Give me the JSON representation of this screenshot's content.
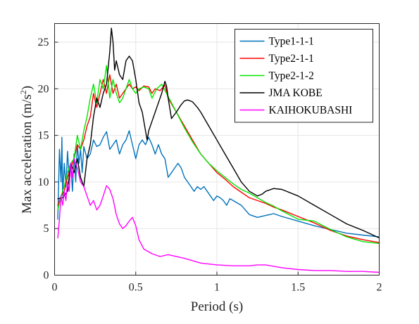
{
  "chart_data": {
    "type": "line",
    "xlabel": "Period (s)",
    "ylabel_text": "Max acceleration (m/s",
    "ylabel_sup": "2",
    "ylabel_close": ")",
    "xlim": [
      0,
      2
    ],
    "ylim": [
      0,
      27
    ],
    "xticks": [
      0,
      0.5,
      1,
      1.5,
      2
    ],
    "xtick_labels": [
      "0",
      "0.5",
      "1",
      "1.5",
      "2"
    ],
    "yticks": [
      0,
      5,
      10,
      15,
      20,
      25
    ],
    "ytick_labels": [
      "0",
      "5",
      "10",
      "15",
      "20",
      "25"
    ],
    "grid": true,
    "legend_position": "top-right",
    "series": [
      {
        "name": "Type1-1-1",
        "color": "#0072BD",
        "x": [
          0.02,
          0.03,
          0.04,
          0.045,
          0.05,
          0.06,
          0.07,
          0.08,
          0.09,
          0.1,
          0.11,
          0.12,
          0.13,
          0.14,
          0.15,
          0.16,
          0.17,
          0.18,
          0.2,
          0.22,
          0.24,
          0.26,
          0.28,
          0.3,
          0.32,
          0.34,
          0.36,
          0.38,
          0.4,
          0.42,
          0.44,
          0.46,
          0.48,
          0.5,
          0.52,
          0.54,
          0.56,
          0.58,
          0.6,
          0.62,
          0.64,
          0.66,
          0.68,
          0.7,
          0.72,
          0.74,
          0.76,
          0.78,
          0.8,
          0.82,
          0.84,
          0.86,
          0.88,
          0.9,
          0.92,
          0.94,
          0.96,
          0.98,
          1.0,
          1.02,
          1.04,
          1.06,
          1.08,
          1.1,
          1.15,
          1.2,
          1.25,
          1.3,
          1.35,
          1.4,
          1.5,
          1.6,
          1.7,
          1.8,
          1.9,
          2.0
        ],
        "y": [
          6.0,
          13.5,
          10.0,
          14.8,
          8.5,
          12.0,
          9.5,
          13.3,
          10.5,
          12.0,
          9.0,
          13.0,
          10.0,
          14.0,
          12.0,
          13.5,
          11.0,
          13.8,
          12.5,
          13.0,
          14.5,
          13.8,
          14.0,
          14.8,
          15.4,
          13.5,
          14.0,
          14.5,
          13.0,
          14.0,
          14.5,
          15.5,
          14.0,
          12.5,
          14.0,
          14.5,
          14.0,
          14.8,
          14.0,
          13.0,
          14.0,
          13.0,
          12.5,
          10.5,
          11.0,
          11.5,
          12.0,
          11.5,
          10.5,
          10.0,
          9.5,
          9.0,
          9.5,
          9.2,
          9.5,
          9.0,
          8.5,
          8.0,
          8.5,
          8.3,
          8.0,
          7.5,
          8.2,
          8.0,
          7.5,
          6.5,
          6.2,
          6.4,
          6.6,
          6.3,
          5.8,
          5.3,
          4.9,
          4.5,
          4.3,
          4.1
        ]
      },
      {
        "name": "Type2-1-1",
        "color": "#FF0000",
        "x": [
          0.02,
          0.04,
          0.06,
          0.08,
          0.1,
          0.12,
          0.14,
          0.16,
          0.18,
          0.2,
          0.22,
          0.24,
          0.26,
          0.28,
          0.3,
          0.32,
          0.34,
          0.36,
          0.38,
          0.4,
          0.42,
          0.44,
          0.46,
          0.48,
          0.5,
          0.52,
          0.55,
          0.58,
          0.6,
          0.62,
          0.65,
          0.68,
          0.7,
          0.75,
          0.8,
          0.85,
          0.9,
          0.95,
          1.0,
          1.05,
          1.1,
          1.15,
          1.2,
          1.25,
          1.3,
          1.35,
          1.4,
          1.5,
          1.6,
          1.7,
          1.8,
          1.9,
          2.0
        ],
        "y": [
          7.5,
          8.5,
          9.0,
          10.5,
          11.5,
          12.5,
          14.0,
          13.5,
          14.5,
          16.0,
          17.0,
          19.5,
          18.0,
          19.5,
          21.0,
          19.5,
          21.5,
          19.5,
          20.5,
          19.0,
          19.5,
          20.0,
          20.5,
          20.0,
          20.2,
          19.8,
          20.3,
          20.2,
          19.5,
          20.0,
          19.8,
          20.4,
          19.0,
          17.5,
          16.0,
          14.5,
          13.0,
          12.0,
          11.0,
          10.3,
          9.5,
          8.9,
          8.3,
          8.0,
          7.7,
          7.3,
          7.0,
          6.3,
          5.6,
          4.8,
          4.2,
          3.8,
          3.5
        ]
      },
      {
        "name": "Type2-1-2",
        "color": "#00E600",
        "x": [
          0.02,
          0.04,
          0.06,
          0.08,
          0.1,
          0.12,
          0.14,
          0.16,
          0.18,
          0.2,
          0.22,
          0.24,
          0.26,
          0.28,
          0.3,
          0.32,
          0.34,
          0.36,
          0.38,
          0.4,
          0.42,
          0.44,
          0.46,
          0.48,
          0.5,
          0.52,
          0.55,
          0.58,
          0.6,
          0.63,
          0.66,
          0.69,
          0.72,
          0.75,
          0.8,
          0.85,
          0.9,
          0.95,
          1.0,
          1.05,
          1.1,
          1.15,
          1.2,
          1.25,
          1.3,
          1.35,
          1.4,
          1.5,
          1.6,
          1.7,
          1.8,
          1.9,
          2.0
        ],
        "y": [
          7.0,
          8.5,
          9.5,
          11.0,
          12.0,
          12.5,
          15.0,
          13.5,
          15.5,
          17.0,
          19.0,
          20.5,
          18.5,
          21.0,
          20.0,
          22.5,
          19.0,
          21.0,
          19.5,
          18.5,
          19.0,
          20.0,
          21.0,
          20.0,
          19.5,
          20.0,
          20.2,
          20.0,
          19.0,
          20.0,
          20.5,
          19.5,
          18.5,
          17.5,
          15.8,
          14.3,
          13.0,
          12.0,
          11.2,
          10.5,
          9.8,
          9.2,
          8.8,
          8.3,
          7.8,
          7.4,
          6.9,
          6.0,
          5.8,
          4.9,
          4.1,
          3.6,
          3.4
        ]
      },
      {
        "name": "JMA KOBE",
        "color": "#000000",
        "x": [
          0.02,
          0.05,
          0.08,
          0.1,
          0.12,
          0.14,
          0.16,
          0.18,
          0.2,
          0.22,
          0.24,
          0.26,
          0.28,
          0.3,
          0.32,
          0.34,
          0.35,
          0.36,
          0.37,
          0.38,
          0.4,
          0.42,
          0.44,
          0.46,
          0.48,
          0.5,
          0.52,
          0.54,
          0.56,
          0.57,
          0.58,
          0.6,
          0.62,
          0.64,
          0.66,
          0.68,
          0.69,
          0.7,
          0.72,
          0.75,
          0.78,
          0.8,
          0.82,
          0.85,
          0.88,
          0.9,
          0.95,
          1.0,
          1.05,
          1.1,
          1.15,
          1.2,
          1.25,
          1.28,
          1.3,
          1.35,
          1.4,
          1.5,
          1.6,
          1.7,
          1.8,
          1.9,
          2.0
        ],
        "y": [
          8.2,
          8.3,
          9.0,
          12.0,
          11.0,
          12.5,
          10.5,
          9.5,
          12.5,
          14.0,
          17.0,
          19.0,
          18.0,
          19.5,
          20.5,
          24.0,
          26.5,
          25.0,
          22.0,
          23.0,
          21.5,
          21.0,
          23.0,
          23.5,
          23.0,
          21.0,
          18.5,
          17.5,
          15.5,
          14.5,
          15.5,
          16.5,
          17.5,
          18.5,
          19.5,
          20.8,
          20.3,
          19.0,
          16.8,
          17.5,
          18.3,
          18.7,
          18.8,
          18.6,
          18.0,
          17.5,
          16.0,
          14.5,
          13.0,
          11.5,
          10.0,
          9.0,
          8.5,
          8.7,
          9.0,
          9.3,
          9.2,
          8.5,
          7.5,
          6.5,
          5.5,
          4.8,
          4.0
        ]
      },
      {
        "name": "KAIHOKUBASHI",
        "color": "#FF00FF",
        "x": [
          0.02,
          0.03,
          0.04,
          0.05,
          0.06,
          0.07,
          0.08,
          0.09,
          0.1,
          0.11,
          0.12,
          0.14,
          0.16,
          0.18,
          0.2,
          0.22,
          0.24,
          0.26,
          0.28,
          0.3,
          0.32,
          0.34,
          0.36,
          0.38,
          0.4,
          0.42,
          0.44,
          0.46,
          0.48,
          0.5,
          0.52,
          0.55,
          0.6,
          0.65,
          0.7,
          0.8,
          0.9,
          1.0,
          1.1,
          1.2,
          1.25,
          1.3,
          1.4,
          1.5,
          1.6,
          1.7,
          1.8,
          1.9,
          2.0
        ],
        "y": [
          4.0,
          6.0,
          8.5,
          7.5,
          9.0,
          8.0,
          10.0,
          9.0,
          12.0,
          10.5,
          12.5,
          11.5,
          10.0,
          9.5,
          8.5,
          7.5,
          8.0,
          7.0,
          7.5,
          8.5,
          9.6,
          9.2,
          8.2,
          6.5,
          5.5,
          5.0,
          5.3,
          5.8,
          6.2,
          5.3,
          3.8,
          2.8,
          2.3,
          2.0,
          2.2,
          1.8,
          1.3,
          1.1,
          1.0,
          1.0,
          1.1,
          1.1,
          0.8,
          0.6,
          0.5,
          0.5,
          0.4,
          0.4,
          0.3
        ]
      }
    ]
  }
}
